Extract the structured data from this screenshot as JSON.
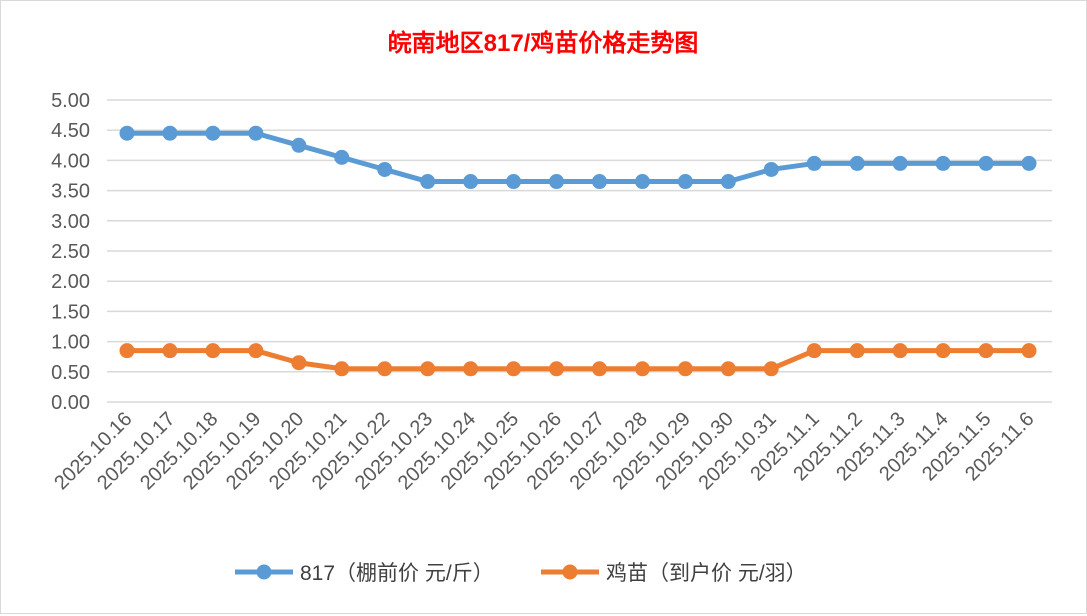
{
  "chart_data": {
    "type": "line",
    "title": "皖南地区817/鸡苗价格走势图",
    "xlabel": "",
    "ylabel": "",
    "ylim": [
      0,
      5
    ],
    "yticks": [
      "0.00",
      "0.50",
      "1.00",
      "1.50",
      "2.00",
      "2.50",
      "3.00",
      "3.50",
      "4.00",
      "4.50",
      "5.00"
    ],
    "grid": true,
    "legend_position": "bottom",
    "categories": [
      "2025.10.16",
      "2025.10.17",
      "2025.10.18",
      "2025.10.19",
      "2025.10.20",
      "2025.10.21",
      "2025.10.22",
      "2025.10.23",
      "2025.10.24",
      "2025.10.25",
      "2025.10.26",
      "2025.10.27",
      "2025.10.28",
      "2025.10.29",
      "2025.10.30",
      "2025.10.31",
      "2025.11.1",
      "2025.11.2",
      "2025.11.3",
      "2025.11.4",
      "2025.11.5",
      "2025.11.6"
    ],
    "series": [
      {
        "name": "817（棚前价 元/斤）",
        "color": "#5b9bd5",
        "values": [
          4.45,
          4.45,
          4.45,
          4.45,
          4.25,
          4.05,
          3.85,
          3.65,
          3.65,
          3.65,
          3.65,
          3.65,
          3.65,
          3.65,
          3.65,
          3.85,
          3.95,
          3.95,
          3.95,
          3.95,
          3.95,
          3.95
        ]
      },
      {
        "name": "鸡苗（到户价 元/羽）",
        "color": "#ed7d31",
        "values": [
          0.85,
          0.85,
          0.85,
          0.85,
          0.65,
          0.55,
          0.55,
          0.55,
          0.55,
          0.55,
          0.55,
          0.55,
          0.55,
          0.55,
          0.55,
          0.55,
          0.85,
          0.85,
          0.85,
          0.85,
          0.85,
          0.85
        ]
      }
    ]
  }
}
